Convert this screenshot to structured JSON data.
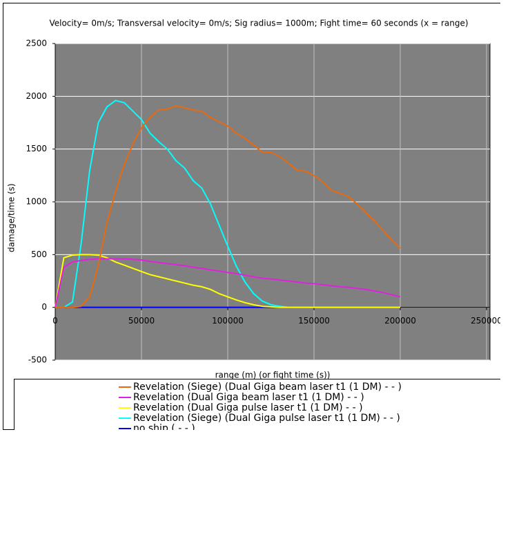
{
  "chart_data": {
    "type": "line",
    "title": "Velocity= 0m/s; Transversal velocity= 0m/s; Sig radius= 1000m; Fight time= 60 seconds (x = range)",
    "x_label": "range (m) (or fight time (s))",
    "y_label": "damage/time (s)",
    "x": [
      0,
      5000,
      10000,
      15000,
      20000,
      25000,
      30000,
      35000,
      40000,
      45000,
      50000,
      55000,
      60000,
      65000,
      70000,
      75000,
      80000,
      85000,
      90000,
      95000,
      100000,
      105000,
      110000,
      115000,
      120000,
      125000,
      130000,
      135000,
      140000,
      145000,
      150000,
      155000,
      160000,
      165000,
      170000,
      175000,
      180000,
      185000,
      190000,
      195000,
      200000
    ],
    "series": [
      {
        "name": "Revelation (Siege) (Dual Giga beam laser t1 (1 DM)  -  - )",
        "color": "#e86a10",
        "values": [
          0,
          0,
          0,
          10,
          100,
          400,
          800,
          1100,
          1350,
          1550,
          1700,
          1800,
          1870,
          1880,
          1910,
          1890,
          1870,
          1860,
          1800,
          1760,
          1720,
          1650,
          1600,
          1540,
          1470,
          1470,
          1430,
          1370,
          1300,
          1290,
          1250,
          1190,
          1110,
          1080,
          1050,
          980,
          900,
          820,
          730,
          640,
          560
        ]
      },
      {
        "name": "Revelation (Dual Giga beam laser t1 (1 DM)  -  - )",
        "color": "#e020e0",
        "values": [
          0,
          380,
          430,
          445,
          455,
          460,
          460,
          460,
          460,
          455,
          450,
          435,
          425,
          415,
          405,
          395,
          380,
          370,
          355,
          345,
          330,
          320,
          305,
          290,
          275,
          270,
          260,
          250,
          240,
          230,
          225,
          215,
          205,
          195,
          190,
          180,
          170,
          155,
          140,
          120,
          100
        ]
      },
      {
        "name": "Revelation (Dual Giga pulse laser t1 (1 DM)  -  - )",
        "color": "#ffff00",
        "values": [
          0,
          470,
          495,
          500,
          500,
          495,
          470,
          430,
          400,
          370,
          340,
          310,
          290,
          270,
          250,
          230,
          210,
          195,
          170,
          130,
          100,
          70,
          45,
          25,
          10,
          5,
          0,
          0,
          0,
          0,
          0,
          0,
          0,
          0,
          0,
          0,
          0,
          0,
          0,
          0,
          0
        ]
      },
      {
        "name": "Revelation (Siege) (Dual Giga pulse laser t1 (1 DM)  -  - )",
        "color": "#00ffff",
        "values": [
          0,
          0,
          50,
          600,
          1300,
          1750,
          1900,
          1960,
          1940,
          1860,
          1780,
          1650,
          1570,
          1500,
          1390,
          1320,
          1200,
          1130,
          980,
          780,
          580,
          390,
          240,
          130,
          60,
          25,
          10,
          0,
          0,
          0,
          0,
          0,
          0,
          0,
          0,
          0,
          0,
          0,
          0,
          0,
          0
        ]
      },
      {
        "name": "no ship (  -  -  )",
        "color": "#0000ff",
        "values": [
          0,
          0,
          0,
          0,
          0,
          0,
          0,
          0,
          0,
          0,
          0,
          0,
          0,
          0,
          0,
          0,
          0,
          0,
          0,
          0,
          0,
          0,
          0,
          0,
          0,
          0,
          0,
          0,
          0,
          0,
          0,
          0,
          0,
          0,
          0,
          0,
          0,
          0,
          0,
          0,
          0
        ]
      }
    ],
    "xlim": [
      0,
      250000
    ],
    "xticks": [
      0,
      50000,
      100000,
      150000,
      200000,
      250000
    ],
    "ylim": [
      -500,
      2500
    ],
    "yticks": [
      -500,
      0,
      500,
      1000,
      1500,
      2000,
      2500
    ],
    "grid": true,
    "plot_background": "#808080"
  }
}
